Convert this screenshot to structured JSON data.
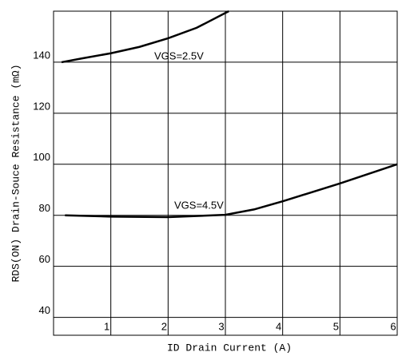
{
  "chart_data": {
    "type": "line",
    "x_label": "ID Drain Current (A)",
    "y_label": "RDS(ON) Drain-Souce Resistance (mΩ)",
    "xlim": [
      0,
      6
    ],
    "xticks": [
      1,
      2,
      3,
      4,
      5,
      6
    ],
    "ylim": [
      33,
      160
    ],
    "yticks": [
      40,
      60,
      80,
      100,
      120,
      140
    ],
    "grid": true,
    "series": [
      {
        "name": "VGS=2.5V",
        "color": "#000000",
        "x": [
          0.14,
          0.5,
          1,
          1.5,
          2,
          2.5,
          3.06
        ],
        "values": [
          140,
          141.5,
          143.5,
          146,
          149.4,
          153.5,
          160
        ]
      },
      {
        "name": "VGS=4.5V",
        "color": "#000000",
        "x": [
          0.2,
          1,
          2,
          3,
          3.5,
          4,
          5,
          6
        ],
        "values": [
          80,
          79.5,
          79.3,
          80.2,
          82.3,
          85.5,
          92.5,
          100
        ]
      }
    ]
  }
}
